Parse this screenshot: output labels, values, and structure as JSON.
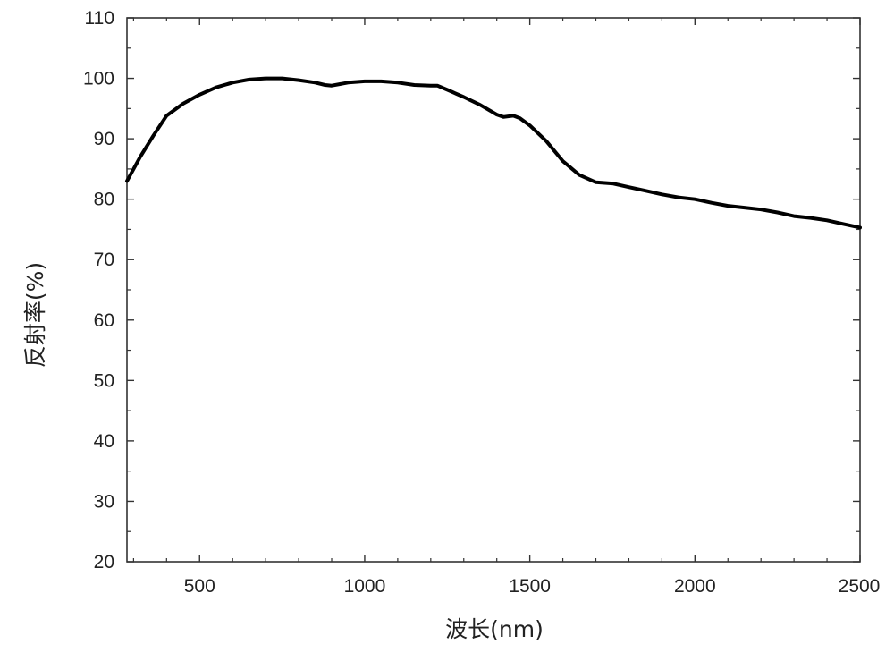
{
  "chart_data": {
    "type": "line",
    "xlabel": "波长(nm)",
    "ylabel": "反射率(%)",
    "xlim": [
      280,
      2500
    ],
    "ylim": [
      20,
      110
    ],
    "x_ticks": [
      500,
      1000,
      1500,
      2000,
      2500
    ],
    "y_ticks": [
      20,
      30,
      40,
      50,
      60,
      70,
      80,
      90,
      100,
      110
    ],
    "x_tick_labels": [
      "500",
      "1000",
      "1500",
      "2000",
      "2500"
    ],
    "y_tick_labels": [
      "20",
      "30",
      "40",
      "50",
      "60",
      "70",
      "80",
      "90",
      "100",
      "110"
    ],
    "grid": false,
    "legend": "none",
    "colors": {
      "line": "#000000",
      "axis": "#333333"
    },
    "series": [
      {
        "x": [
          280,
          320,
          360,
          400,
          450,
          500,
          550,
          600,
          650,
          700,
          750,
          800,
          850,
          880,
          900,
          950,
          1000,
          1050,
          1100,
          1150,
          1200,
          1220,
          1250,
          1300,
          1350,
          1400,
          1420,
          1450,
          1470,
          1500,
          1550,
          1600,
          1650,
          1700,
          1750,
          1800,
          1850,
          1900,
          1950,
          2000,
          2050,
          2100,
          2150,
          2200,
          2250,
          2300,
          2350,
          2400,
          2450,
          2500
        ],
        "y": [
          83,
          87,
          90.5,
          93.8,
          95.8,
          97.3,
          98.5,
          99.3,
          99.8,
          100,
          100,
          99.7,
          99.3,
          98.9,
          98.8,
          99.3,
          99.5,
          99.5,
          99.3,
          98.9,
          98.8,
          98.8,
          98.1,
          96.9,
          95.6,
          94,
          93.6,
          93.8,
          93.4,
          92.2,
          89.6,
          86.3,
          84,
          82.8,
          82.6,
          82,
          81.4,
          80.8,
          80.3,
          80,
          79.4,
          78.9,
          78.6,
          78.3,
          77.8,
          77.2,
          76.9,
          76.5,
          75.9,
          75.3
        ]
      }
    ]
  }
}
